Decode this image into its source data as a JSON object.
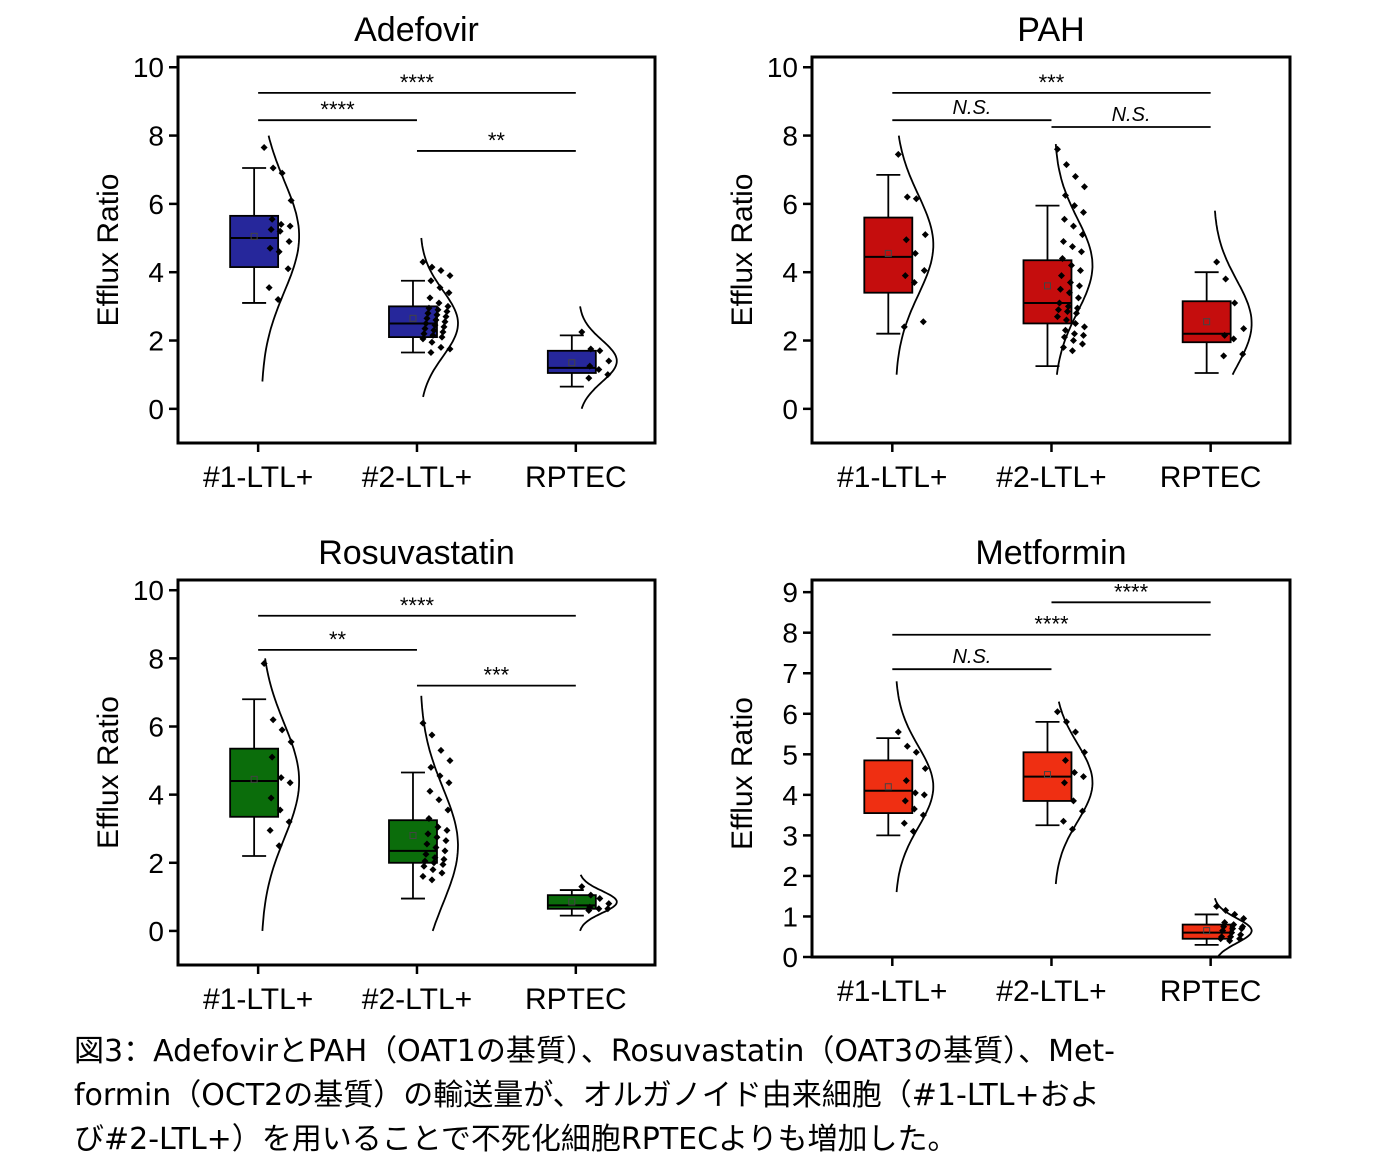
{
  "caption": {
    "lines": [
      "図3：AdefovirとPAH（OAT1の基質）、Rosuvastatin（OAT3の基質）、Met-",
      "formin（OCT2の基質）の輸送量が、オルガノイド由来細胞（#1-LTL+およ",
      "び#2-LTL+）を用いることで不死化細胞RPTECよりも増加した。"
    ]
  },
  "chart_data": [
    {
      "type": "box",
      "title": "Adefovir",
      "ylabel": "Efflux Ratio",
      "xlabel": "",
      "ylim": [
        -1,
        10.3
      ],
      "yticks": [
        0,
        2,
        4,
        6,
        8,
        10
      ],
      "grid": false,
      "categories": [
        "#1-LTL+",
        "#2-LTL+",
        "RPTEC"
      ],
      "color": "#26279b",
      "groups": [
        {
          "name": "#1-LTL+",
          "whisker_low": 3.1,
          "q1": 4.15,
          "median": 5.0,
          "mean": 5.05,
          "q3": 5.65,
          "whisker_high": 7.05,
          "points": [
            7.65,
            7.05,
            6.9,
            6.1,
            5.55,
            5.4,
            5.35,
            5.25,
            5.2,
            4.9,
            4.7,
            4.6,
            4.1,
            3.55,
            3.2
          ],
          "density_range": [
            0.8,
            8.0
          ],
          "density_peak": 5.05
        },
        {
          "name": "#2-LTL+",
          "whisker_low": 1.65,
          "q1": 2.1,
          "median": 2.5,
          "mean": 2.65,
          "q3": 3.0,
          "whisker_high": 3.75,
          "points": [
            4.3,
            4.15,
            4.05,
            3.9,
            3.75,
            3.55,
            3.4,
            3.25,
            3.1,
            3.0,
            2.95,
            2.9,
            2.85,
            2.8,
            2.75,
            2.7,
            2.65,
            2.6,
            2.55,
            2.5,
            2.45,
            2.4,
            2.35,
            2.3,
            2.25,
            2.2,
            2.15,
            2.1,
            2.05,
            1.95,
            1.8,
            1.75,
            1.65
          ],
          "density_range": [
            0.35,
            5.0
          ],
          "density_peak": 2.5
        },
        {
          "name": "RPTEC",
          "whisker_low": 0.65,
          "q1": 1.05,
          "median": 1.2,
          "mean": 1.35,
          "q3": 1.7,
          "whisker_high": 2.15,
          "points": [
            2.25,
            1.75,
            1.7,
            1.4,
            1.25,
            1.15,
            1.0,
            0.9
          ],
          "density_range": [
            0.0,
            3.0
          ],
          "density_peak": 1.4
        }
      ],
      "annotations": [
        {
          "from": "#1-LTL+",
          "to": "RPTEC",
          "y": 9.25,
          "label": "****",
          "italic": false
        },
        {
          "from": "#1-LTL+",
          "to": "#2-LTL+",
          "y": 8.45,
          "label": "****",
          "italic": false
        },
        {
          "from": "#2-LTL+",
          "to": "RPTEC",
          "y": 7.55,
          "label": "**",
          "italic": false
        }
      ]
    },
    {
      "type": "box",
      "title": "PAH",
      "ylabel": "Efflux Ratio",
      "xlabel": "",
      "ylim": [
        -1,
        10.3
      ],
      "yticks": [
        0,
        2,
        4,
        6,
        8,
        10
      ],
      "grid": false,
      "categories": [
        "#1-LTL+",
        "#2-LTL+",
        "RPTEC"
      ],
      "color": "#c50d0d",
      "groups": [
        {
          "name": "#1-LTL+",
          "whisker_low": 2.2,
          "q1": 3.4,
          "median": 4.45,
          "mean": 4.55,
          "q3": 5.6,
          "whisker_high": 6.85,
          "points": [
            7.45,
            6.2,
            6.15,
            5.1,
            4.95,
            4.55,
            4.05,
            3.9,
            3.7,
            2.55,
            2.4
          ],
          "density_range": [
            1.0,
            8.0
          ],
          "density_peak": 4.8
        },
        {
          "name": "#2-LTL+",
          "whisker_low": 1.25,
          "q1": 2.5,
          "median": 3.1,
          "mean": 3.6,
          "q3": 4.35,
          "whisker_high": 5.95,
          "points": [
            7.6,
            7.15,
            6.8,
            6.5,
            6.25,
            5.95,
            5.75,
            5.55,
            5.35,
            5.1,
            4.9,
            4.75,
            4.6,
            4.4,
            4.2,
            4.05,
            3.9,
            3.7,
            3.6,
            3.5,
            3.4,
            3.25,
            3.1,
            3.0,
            2.95,
            2.9,
            2.85,
            2.8,
            2.7,
            2.6,
            2.5,
            2.4,
            2.3,
            2.2,
            2.15,
            2.1,
            2.0,
            1.9,
            1.8,
            1.7
          ],
          "density_range": [
            1.0,
            7.75
          ],
          "density_peak": 4.2
        },
        {
          "name": "RPTEC",
          "whisker_low": 1.05,
          "q1": 1.95,
          "median": 2.2,
          "mean": 2.55,
          "q3": 3.15,
          "whisker_high": 4.0,
          "points": [
            4.3,
            3.8,
            3.1,
            2.35,
            2.15,
            2.05,
            1.6,
            1.55
          ],
          "density_range": [
            1.0,
            5.8
          ],
          "density_peak": 2.5
        }
      ],
      "annotations": [
        {
          "from": "#1-LTL+",
          "to": "RPTEC",
          "y": 9.25,
          "label": "***",
          "italic": false
        },
        {
          "from": "#1-LTL+",
          "to": "#2-LTL+",
          "y": 8.45,
          "label": "N.S.",
          "italic": true
        },
        {
          "from": "#2-LTL+",
          "to": "RPTEC",
          "y": 8.25,
          "label": "N.S.",
          "italic": true
        }
      ]
    },
    {
      "type": "box",
      "title": "Rosuvastatin",
      "ylabel": "Efflux Ratio",
      "xlabel": "",
      "ylim": [
        -1,
        10.3
      ],
      "yticks": [
        0,
        2,
        4,
        6,
        8,
        10
      ],
      "grid": false,
      "categories": [
        "#1-LTL+",
        "#2-LTL+",
        "RPTEC"
      ],
      "color": "#0b6d0b",
      "groups": [
        {
          "name": "#1-LTL+",
          "whisker_low": 2.2,
          "q1": 3.35,
          "median": 4.4,
          "mean": 4.45,
          "q3": 5.35,
          "whisker_high": 6.8,
          "points": [
            7.85,
            6.2,
            5.9,
            5.55,
            5.1,
            4.5,
            4.35,
            3.9,
            3.55,
            3.2,
            2.95,
            2.5
          ],
          "density_range": [
            0.0,
            8.0
          ],
          "density_peak": 4.4
        },
        {
          "name": "#2-LTL+",
          "whisker_low": 0.95,
          "q1": 2.0,
          "median": 2.35,
          "mean": 2.8,
          "q3": 3.25,
          "whisker_high": 4.65,
          "points": [
            6.1,
            5.75,
            5.3,
            5.0,
            4.8,
            4.55,
            4.35,
            4.1,
            3.85,
            3.55,
            3.3,
            3.05,
            2.95,
            2.85,
            2.75,
            2.65,
            2.55,
            2.45,
            2.35,
            2.25,
            2.15,
            2.1,
            2.05,
            2.0,
            1.95,
            1.9,
            1.8,
            1.7,
            1.6,
            1.5
          ],
          "density_range": [
            0.0,
            6.9
          ],
          "density_peak": 2.5
        },
        {
          "name": "RPTEC",
          "whisker_low": 0.45,
          "q1": 0.65,
          "median": 0.75,
          "mean": 0.85,
          "q3": 1.05,
          "whisker_high": 1.2,
          "points": [
            1.3,
            1.05,
            0.95,
            0.8,
            0.7,
            0.65,
            0.65,
            0.6
          ],
          "density_range": [
            0.0,
            1.65
          ],
          "density_peak": 0.85
        }
      ],
      "annotations": [
        {
          "from": "#1-LTL+",
          "to": "RPTEC",
          "y": 9.25,
          "label": "****",
          "italic": false
        },
        {
          "from": "#1-LTL+",
          "to": "#2-LTL+",
          "y": 8.25,
          "label": "**",
          "italic": false
        },
        {
          "from": "#2-LTL+",
          "to": "RPTEC",
          "y": 7.2,
          "label": "***",
          "italic": false
        }
      ]
    },
    {
      "type": "box",
      "title": "Metformin",
      "ylabel": "Efflux Ratio",
      "xlabel": "",
      "ylim": [
        0,
        9.3
      ],
      "yticks": [
        0,
        1,
        2,
        3,
        4,
        5,
        6,
        7,
        8,
        9
      ],
      "grid": false,
      "categories": [
        "#1-LTL+",
        "#2-LTL+",
        "RPTEC"
      ],
      "color": "#ef2f12",
      "groups": [
        {
          "name": "#1-LTL+",
          "whisker_low": 3.0,
          "q1": 3.55,
          "median": 4.1,
          "mean": 4.2,
          "q3": 4.85,
          "whisker_high": 5.4,
          "points": [
            5.55,
            5.2,
            5.05,
            4.65,
            4.35,
            4.05,
            4.0,
            3.85,
            3.65,
            3.5,
            3.3,
            3.1
          ],
          "density_range": [
            1.6,
            6.8
          ],
          "density_peak": 4.2
        },
        {
          "name": "#2-LTL+",
          "whisker_low": 3.25,
          "q1": 3.85,
          "median": 4.45,
          "mean": 4.5,
          "q3": 5.05,
          "whisker_high": 5.8,
          "points": [
            6.05,
            5.8,
            5.55,
            5.05,
            4.85,
            4.55,
            4.45,
            4.3,
            3.85,
            3.6,
            3.35,
            3.15
          ],
          "density_range": [
            1.8,
            6.3
          ],
          "density_peak": 4.3
        },
        {
          "name": "RPTEC",
          "whisker_low": 0.3,
          "q1": 0.45,
          "median": 0.6,
          "mean": 0.65,
          "q3": 0.8,
          "whisker_high": 1.05,
          "points": [
            1.25,
            1.15,
            1.05,
            0.95,
            0.85,
            0.8,
            0.75,
            0.75,
            0.7,
            0.7,
            0.65,
            0.6,
            0.55,
            0.5,
            0.5,
            0.45,
            0.45,
            0.4
          ],
          "density_range": [
            0.0,
            1.45
          ],
          "density_peak": 0.65
        }
      ],
      "annotations": [
        {
          "from": "#2-LTL+",
          "to": "RPTEC",
          "y": 8.75,
          "label": "****",
          "italic": false
        },
        {
          "from": "#1-LTL+",
          "to": "RPTEC",
          "y": 7.95,
          "label": "****",
          "italic": false
        },
        {
          "from": "#1-LTL+",
          "to": "#2-LTL+",
          "y": 7.1,
          "label": "N.S.",
          "italic": true
        }
      ]
    }
  ]
}
